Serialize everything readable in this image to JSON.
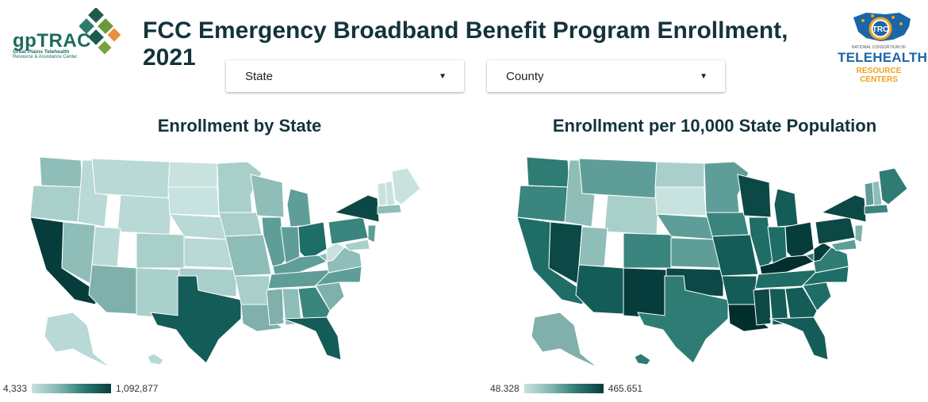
{
  "header": {
    "title": "FCC Emergency Broadband Benefit Program Enrollment, 2021",
    "logo_left_text": "gpTRAC",
    "logo_left_sub": "Great Plains Telehealth",
    "logo_left_sub2": "Resource & Assistance Center",
    "logo_right_small": "NATIONAL CONSORTIUM OF",
    "logo_right_big": "TELEHEALTH",
    "logo_right_sub": "RESOURCE CENTERS",
    "logo_right_badge": "TRC"
  },
  "filters": {
    "state_label": "State",
    "county_label": "County"
  },
  "chart_data": [
    {
      "type": "map",
      "title": "Enrollment by State",
      "legend_min": "4,333",
      "legend_max": "1,092,877",
      "color_range": [
        "#c8e2df",
        "#063d3c"
      ]
    },
    {
      "type": "map",
      "title": "Enrollment per 10,000 State Population",
      "legend_min": "48.328",
      "legend_max": "465.651",
      "color_range": [
        "#c8e2df",
        "#063d3c"
      ]
    }
  ],
  "colors": {
    "title": "#14333b",
    "accent": "#1f6b5e"
  }
}
